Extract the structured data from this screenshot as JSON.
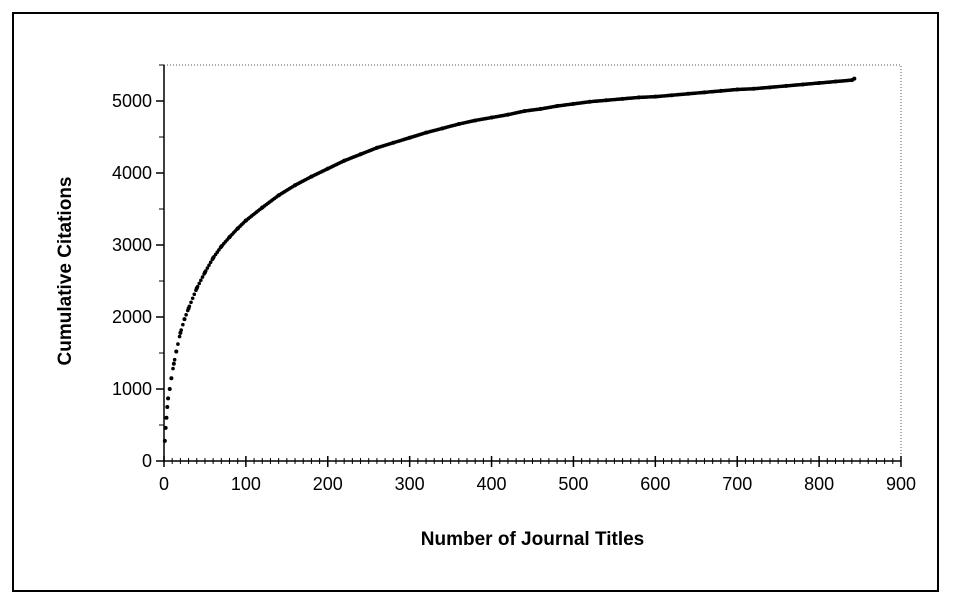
{
  "chart_data": {
    "type": "scatter",
    "title": "",
    "xlabel": "Number of Journal Titles",
    "ylabel": "Cumulative Citations",
    "xlim": [
      0,
      900
    ],
    "ylim": [
      0,
      5500
    ],
    "x_ticks": [
      0,
      100,
      200,
      300,
      400,
      500,
      600,
      700,
      800,
      900
    ],
    "y_ticks": [
      0,
      1000,
      2000,
      3000,
      4000,
      5000
    ],
    "x_minor_step": 10,
    "y_minor_step": 500,
    "grid": false,
    "legend": "none",
    "marker_color": "#000000",
    "series": [
      {
        "x": [
          1,
          2,
          3,
          4,
          5,
          7,
          9,
          12,
          15,
          20,
          25,
          30,
          40,
          50,
          60,
          70,
          80,
          90,
          100,
          120,
          140,
          160,
          180,
          200,
          220,
          240,
          260,
          280,
          300,
          320,
          340,
          360,
          380,
          400,
          420,
          440,
          460,
          480,
          500,
          520,
          540,
          560,
          580,
          600,
          620,
          640,
          660,
          680,
          700,
          720,
          740,
          760,
          780,
          800,
          820,
          840,
          843
        ],
        "y": [
          280,
          460,
          600,
          750,
          870,
          1000,
          1150,
          1350,
          1520,
          1780,
          1970,
          2120,
          2400,
          2620,
          2820,
          2980,
          3110,
          3230,
          3340,
          3520,
          3690,
          3830,
          3950,
          4060,
          4170,
          4260,
          4350,
          4420,
          4490,
          4560,
          4620,
          4680,
          4730,
          4770,
          4810,
          4860,
          4890,
          4930,
          4960,
          4990,
          5010,
          5030,
          5050,
          5060,
          5080,
          5100,
          5120,
          5140,
          5160,
          5170,
          5190,
          5210,
          5230,
          5250,
          5270,
          5290,
          5310
        ]
      }
    ]
  }
}
